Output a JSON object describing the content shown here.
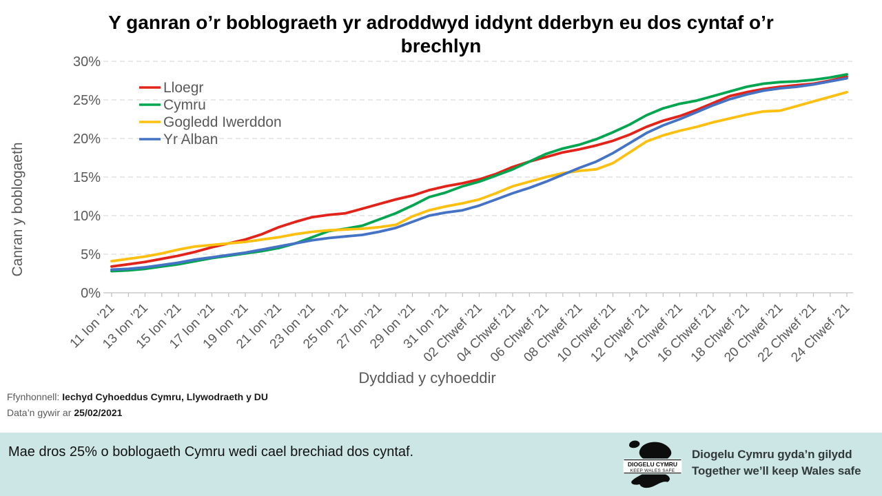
{
  "title": "Y ganran o’r boblograeth yr adroddwyd iddynt dderbyn eu dos cyntaf o’r brechlyn",
  "chart_data": {
    "type": "line",
    "x_label": "Dyddiad y cyhoeddir",
    "y_label": "Canran y boblogaeth",
    "ylim": [
      0,
      30
    ],
    "y_tick_values": [
      0,
      5,
      10,
      15,
      20,
      25,
      30
    ],
    "y_tick_labels": [
      "0%",
      "5%",
      "10%",
      "15%",
      "20%",
      "25%",
      "30%"
    ],
    "grid": "horizontal-dashed",
    "legend_position": "top-left-inside",
    "x_tick_label_every": 2,
    "dates": [
      "11 Ion ’21",
      "12 Ion ’21",
      "13 Ion ’21",
      "14 Ion ’21",
      "15 Ion ’21",
      "16 Ion ’21",
      "17 Ion ’21",
      "18 Ion ’21",
      "19 Ion ’21",
      "20 Ion ’21",
      "21 Ion ’21",
      "22 Ion ’21",
      "23 Ion ’21",
      "24 Ion ’21",
      "25 Ion ’21",
      "26 Ion ’21",
      "27 Ion ’21",
      "28 Ion ’21",
      "29 Ion ’21",
      "30 Ion ’21",
      "31 Ion ’21",
      "01 Chwef ’21",
      "02 Chwef ’21",
      "03 Chwef ’21",
      "04 Chwef ’21",
      "05 Chwef ’21",
      "06 Chwef ’21",
      "07 Chwef ’21",
      "08 Chwef ’21",
      "09 Chwef ’21",
      "10 Chwef ’21",
      "11 Chwef ’21",
      "12 Chwef ’21",
      "13 Chwef ’21",
      "14 Chwef ’21",
      "15 Chwef ’21",
      "16 Chwef ’21",
      "17 Chwef ’21",
      "18 Chwef ’21",
      "19 Chwef ’21",
      "20 Chwef ’21",
      "21 Chwef ’21",
      "22 Chwef ’21",
      "23 Chwef ’21",
      "24 Chwef ’21"
    ],
    "series": [
      {
        "name": "Lloegr",
        "color": "#e2231a",
        "values": [
          3.4,
          3.7,
          4.0,
          4.4,
          4.8,
          5.3,
          5.9,
          6.4,
          6.9,
          7.6,
          8.5,
          9.2,
          9.8,
          10.1,
          10.3,
          10.9,
          11.5,
          12.1,
          12.6,
          13.3,
          13.8,
          14.2,
          14.7,
          15.4,
          16.3,
          17.0,
          17.6,
          18.2,
          18.6,
          19.1,
          19.7,
          20.5,
          21.5,
          22.3,
          22.9,
          23.7,
          24.6,
          25.5,
          26.0,
          26.4,
          26.7,
          26.9,
          27.1,
          27.5,
          28.0
        ]
      },
      {
        "name": "Cymru",
        "color": "#00a550",
        "values": [
          2.8,
          2.9,
          3.1,
          3.4,
          3.7,
          4.1,
          4.5,
          4.8,
          5.1,
          5.4,
          5.8,
          6.4,
          7.2,
          8.0,
          8.3,
          8.7,
          9.5,
          10.3,
          11.3,
          12.4,
          13.0,
          13.8,
          14.4,
          15.2,
          16.0,
          17.0,
          18.0,
          18.7,
          19.2,
          19.9,
          20.8,
          21.8,
          23.0,
          23.9,
          24.5,
          24.9,
          25.5,
          26.1,
          26.7,
          27.1,
          27.3,
          27.4,
          27.6,
          27.9,
          28.3
        ]
      },
      {
        "name": "Gogledd Iwerddon",
        "color": "#fdc010",
        "values": [
          4.1,
          4.4,
          4.7,
          5.1,
          5.6,
          6.0,
          6.2,
          6.4,
          6.6,
          6.9,
          7.2,
          7.6,
          7.9,
          8.1,
          8.2,
          8.3,
          8.5,
          8.8,
          9.9,
          10.7,
          11.2,
          11.6,
          12.1,
          12.9,
          13.8,
          14.4,
          15.0,
          15.5,
          15.8,
          16.0,
          16.8,
          18.2,
          19.6,
          20.4,
          21.0,
          21.5,
          22.1,
          22.6,
          23.1,
          23.5,
          23.6,
          24.2,
          24.8,
          25.4,
          26.0
        ]
      },
      {
        "name": "Yr Alban",
        "color": "#4472c4",
        "values": [
          3.0,
          3.1,
          3.3,
          3.6,
          3.9,
          4.3,
          4.6,
          4.9,
          5.2,
          5.6,
          6.0,
          6.4,
          6.8,
          7.1,
          7.3,
          7.5,
          7.9,
          8.4,
          9.2,
          10.0,
          10.4,
          10.7,
          11.3,
          12.1,
          12.9,
          13.6,
          14.4,
          15.3,
          16.2,
          17.0,
          18.1,
          19.4,
          20.7,
          21.7,
          22.5,
          23.4,
          24.3,
          25.1,
          25.7,
          26.2,
          26.5,
          26.7,
          27.0,
          27.4,
          27.8
        ]
      }
    ],
    "style": {
      "axis_text_color": "#595959",
      "grid_color": "#d9d9d9",
      "axis_line_color": "#bfbfbf",
      "line_width": 3.8
    }
  },
  "footnote": {
    "source_label": "Ffynhonnell:",
    "source_value": "Iechyd Cyhoeddus Cymru, Llywodraeth y DU",
    "accurate_label": "Data’n gywir ar",
    "accurate_value": "25/02/2021"
  },
  "banner": {
    "message": "Mae dros 25% o boblogaeth Cymru wedi cael brechiad dos cyntaf.",
    "background": "#cbe6e4",
    "logo_line1": "DIOGELU CYMRU",
    "logo_line2": "KEEP WALES SAFE",
    "tagline_cy": "Diogelu Cymru gyda’n gilydd",
    "tagline_en": "Together we’ll keep Wales safe"
  }
}
